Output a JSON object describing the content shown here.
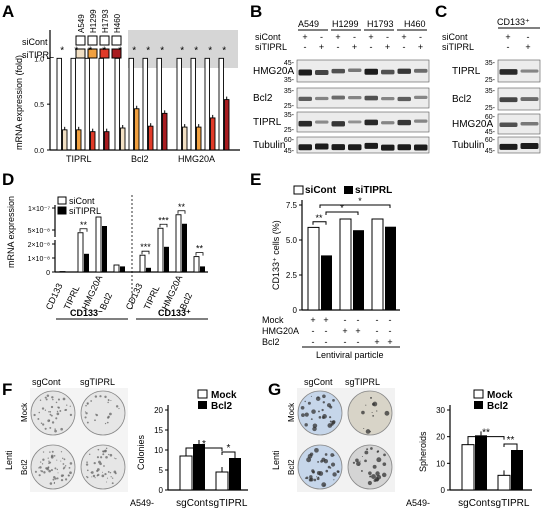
{
  "panels": {
    "A": {
      "letter": "A",
      "ylabel": "mRNA expression (fold)",
      "legend_rows": [
        "siCont",
        "siTIPRL"
      ],
      "cell_lines": [
        "A549",
        "H1299",
        "H1793",
        "H460"
      ],
      "groups": [
        "TIPRL",
        "Bcl2",
        "HMG20A"
      ],
      "yticks": [
        "0.0",
        "0.5",
        "1.0"
      ],
      "star": "*"
    },
    "B": {
      "letter": "B",
      "cell_lines": [
        "A549",
        "H1299",
        "H1793",
        "H460"
      ],
      "rows": [
        "siCont",
        "siTIPRL"
      ],
      "row_signs": [
        "+",
        "-",
        "+",
        "-",
        "+",
        "-",
        "+",
        "-",
        "-",
        "+",
        "-",
        "+",
        "-",
        "+",
        "-",
        "+"
      ],
      "blots": [
        {
          "name": "HMG20A",
          "markers": [
            "45-",
            "35-"
          ]
        },
        {
          "name": "Bcl2",
          "markers": [
            "35-",
            "25-"
          ]
        },
        {
          "name": "TIPRL",
          "markers": [
            "35-",
            "25-"
          ]
        },
        {
          "name": "Tubulin",
          "markers": [
            "60-",
            "45-"
          ]
        }
      ]
    },
    "C": {
      "letter": "C",
      "header": "CD133⁺",
      "rows": [
        "siCont",
        "siTIPRL"
      ],
      "row_signs": [
        "+",
        "-",
        "-",
        "+"
      ],
      "blots": [
        {
          "name": "TIPRL",
          "markers": [
            "35-",
            "25-"
          ]
        },
        {
          "name": "Bcl2",
          "markers": [
            "35-",
            "25-"
          ]
        },
        {
          "name": "HMG20A",
          "markers": [
            "60-",
            "45-"
          ]
        },
        {
          "name": "Tubulin",
          "markers": [
            "60-",
            "45-"
          ]
        }
      ]
    },
    "D": {
      "letter": "D",
      "legend": [
        "siCont",
        "siTIPRL"
      ],
      "ylabel": "mRNA expression",
      "yticks": [
        "0",
        "1×10⁻⁸",
        "2×10⁻⁸",
        "5×10⁻⁸",
        "1×10⁻⁷"
      ],
      "genes": [
        "CD133",
        "TIPRL",
        "HMG20A",
        "Bcl2"
      ],
      "groups": [
        "CD133⁻",
        "CD133⁺"
      ],
      "sig": [
        "***",
        "**",
        "***",
        "**",
        "**"
      ]
    },
    "E": {
      "letter": "E",
      "legend": [
        "siCont",
        "siTIPRL"
      ],
      "ylabel": "CD133⁺ cells (%)",
      "yticks": [
        "0",
        "2.5",
        "5.0",
        "7.5"
      ],
      "conditions": [
        "Mock",
        "HMG20A",
        "Bcl2"
      ],
      "signs": [
        [
          "+",
          "+",
          "-",
          "-",
          "-",
          "-"
        ],
        [
          "-",
          "-",
          "+",
          "+",
          "-",
          "-"
        ],
        [
          "-",
          "-",
          "-",
          "-",
          "+",
          "+"
        ]
      ],
      "xlabel": "Lentiviral particle",
      "sig": [
        "**",
        "*",
        "*"
      ]
    },
    "F": {
      "letter": "F",
      "col_labels": [
        "sgCont",
        "sgTIPRL"
      ],
      "row_labels": [
        "Mock",
        "Bcl2"
      ],
      "side_label": "Lenti",
      "legend": [
        "Mock",
        "Bcl2"
      ],
      "ylabel": "Colonies",
      "yticks": [
        "0",
        "5",
        "10",
        "15",
        "20"
      ],
      "xprefix": "A549-",
      "xcats": [
        "sgCont",
        "sgTIPRL"
      ],
      "sig": [
        "*",
        "*"
      ]
    },
    "G": {
      "letter": "G",
      "col_labels": [
        "sgCont",
        "sgTIPRL"
      ],
      "row_labels": [
        "Mock",
        "Bcl2"
      ],
      "side_label": "Lenti",
      "legend": [
        "Mock",
        "Bcl2"
      ],
      "ylabel": "Spheroids",
      "yticks": [
        "0",
        "10",
        "20",
        "30"
      ],
      "xprefix": "A549-",
      "xcats": [
        "sgCont",
        "sgTIPRL"
      ],
      "sig": [
        "**",
        "**"
      ]
    }
  },
  "colors": {
    "a549_kd": "#f2e0c4",
    "h1299_kd": "#f0a040",
    "h1793_kd": "#e03a28",
    "h460_kd": "#a81c20",
    "black": "#000000",
    "white": "#ffffff",
    "shade": "#d6d6d6"
  },
  "chart_data": [
    {
      "panel": "A",
      "type": "bar",
      "categories": [
        "TIPRL",
        "Bcl2",
        "HMG20A"
      ],
      "ylabel": "mRNA expression (fold)",
      "ylim": [
        0,
        1.2
      ],
      "series": [
        {
          "name": "A549 siCont",
          "values": [
            1.0,
            1.0,
            1.0
          ]
        },
        {
          "name": "A549 siTIPRL",
          "values": [
            0.22,
            0.24,
            0.25
          ]
        },
        {
          "name": "H1299 siCont",
          "values": [
            1.0,
            1.0,
            1.0
          ]
        },
        {
          "name": "H1299 siTIPRL",
          "values": [
            0.22,
            0.45,
            0.25
          ]
        },
        {
          "name": "H1793 siCont",
          "values": [
            1.0,
            1.0,
            1.0
          ]
        },
        {
          "name": "H1793 siTIPRL",
          "values": [
            0.2,
            0.26,
            0.35
          ]
        },
        {
          "name": "H460 siCont",
          "values": [
            1.0,
            1.0,
            1.0
          ]
        },
        {
          "name": "H460 siTIPRL",
          "values": [
            0.2,
            0.4,
            0.55
          ]
        }
      ]
    },
    {
      "panel": "D",
      "type": "bar",
      "categories": [
        "CD133⁻ CD133",
        "CD133⁻ TIPRL",
        "CD133⁻ HMG20A",
        "CD133⁻ Bcl2",
        "CD133⁺ CD133",
        "CD133⁺ TIPRL",
        "CD133⁺ HMG20A",
        "CD133⁺ Bcl2"
      ],
      "ylabel": "mRNA expression",
      "series": [
        {
          "name": "siCont",
          "values": [
            3e-10,
            4.5e-08,
            8e-08,
            5e-09,
            1.2e-08,
            5.5e-08,
            8.5e-08,
            1.1e-08
          ]
        },
        {
          "name": "siTIPRL",
          "values": [
            1e-10,
            1.3e-08,
            6e-08,
            4e-09,
            3e-09,
            1.8e-08,
            6.5e-08,
            4e-09
          ]
        }
      ]
    },
    {
      "panel": "E",
      "type": "bar",
      "categories": [
        "Mock",
        "HMG20A",
        "Bcl2"
      ],
      "ylabel": "CD133⁺ cells (%)",
      "ylim": [
        0,
        7.5
      ],
      "series": [
        {
          "name": "siCont",
          "values": [
            5.9,
            6.5,
            6.5
          ]
        },
        {
          "name": "siTIPRL",
          "values": [
            3.9,
            5.7,
            5.95
          ]
        }
      ]
    },
    {
      "panel": "F",
      "type": "bar",
      "categories": [
        "sgCont",
        "sgTIPRL"
      ],
      "ylabel": "Colonies",
      "ylim": [
        0,
        20
      ],
      "series": [
        {
          "name": "Mock",
          "values": [
            8.5,
            4.5
          ]
        },
        {
          "name": "Bcl2",
          "values": [
            11.5,
            8.0
          ]
        }
      ]
    },
    {
      "panel": "G",
      "type": "bar",
      "categories": [
        "sgCont",
        "sgTIPRL"
      ],
      "ylabel": "Spheroids",
      "ylim": [
        0,
        30
      ],
      "series": [
        {
          "name": "Mock",
          "values": [
            17,
            5.5
          ]
        },
        {
          "name": "Bcl2",
          "values": [
            20.5,
            15
          ]
        }
      ]
    }
  ]
}
